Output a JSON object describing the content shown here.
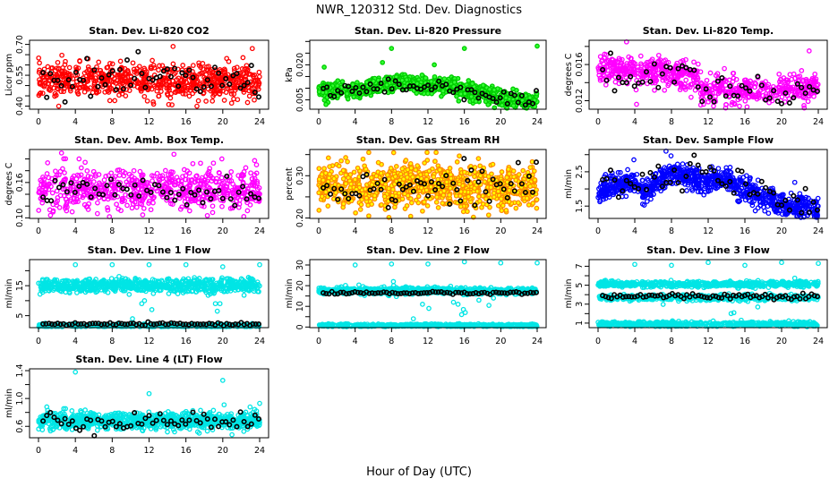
{
  "title": "NWR_120312  Std. Dev. Diagnostics",
  "xlabel": "Hour of Day (UTC)",
  "chart_data": [
    {
      "type": "scatter",
      "title": "Stan. Dev. Li-820 CO2",
      "ylabel": "Licor ppm",
      "xlim": [
        0,
        24
      ],
      "xticks": [
        0,
        4,
        8,
        12,
        16,
        20,
        24
      ],
      "xticklabels": [
        "0",
        "4",
        "8",
        "12",
        "16",
        "20",
        "24"
      ],
      "ylim": [
        0.385,
        0.72
      ],
      "yticks": [
        0.4,
        0.45,
        0.5,
        0.55,
        0.6,
        0.65,
        0.7
      ],
      "yticklabels": [
        "0.40",
        "0.55",
        "0.70"
      ],
      "ylabelvals": [
        0.4,
        0.55,
        0.7
      ],
      "color": "#ff0000",
      "fill": "none",
      "bands": [
        {
          "hours": [
            0,
            24
          ],
          "center": [
            0.525,
            0.52
          ],
          "spread": 0.04,
          "n": 700
        }
      ],
      "black": {
        "hours": [
          0,
          24
        ],
        "center": [
          0.525,
          0.52
        ],
        "spread": 0.045,
        "n": 60
      },
      "outliers": [
        [
          2.2,
          0.4
        ],
        [
          12.5,
          0.41
        ],
        [
          17.2,
          0.4
        ],
        [
          24,
          0.38
        ],
        [
          14.6,
          0.69
        ],
        [
          23.2,
          0.68
        ]
      ]
    },
    {
      "type": "scatter",
      "title": "Stan. Dev. Li-820 Pressure",
      "ylabel": "kPa",
      "xlim": [
        0,
        24
      ],
      "xticks": [
        0,
        4,
        8,
        12,
        16,
        20,
        24
      ],
      "xticklabels": [
        "0",
        "4",
        "8",
        "12",
        "16",
        "20",
        "24"
      ],
      "ylim": [
        0.001,
        0.0305
      ],
      "yticks": [
        0.005,
        0.01,
        0.015,
        0.02,
        0.025,
        0.03
      ],
      "yticklabels": [
        "0.005",
        "0.020"
      ],
      "ylabelvals": [
        0.005,
        0.02
      ],
      "color": "#00cc00",
      "fill": "#33ff33",
      "bands": [
        {
          "hours": [
            0,
            4,
            8,
            12,
            16,
            18,
            20,
            24
          ],
          "center": [
            0.009,
            0.009,
            0.012,
            0.0115,
            0.0095,
            0.008,
            0.0055,
            0.004
          ],
          "spread": 0.0018,
          "n": 900
        }
      ],
      "black": {
        "hours": [
          0,
          4,
          8,
          12,
          16,
          18,
          20,
          24
        ],
        "center": [
          0.009,
          0.009,
          0.011,
          0.011,
          0.0095,
          0.008,
          0.0055,
          0.004
        ],
        "spread": 0.0018,
        "n": 60
      },
      "outliers": [
        [
          8,
          0.027
        ],
        [
          16,
          0.027
        ],
        [
          24,
          0.028
        ],
        [
          7,
          0.021
        ],
        [
          12.7,
          0.02
        ],
        [
          0.6,
          0.019
        ]
      ]
    },
    {
      "type": "scatter",
      "title": "Stan. Dev. Li-820 Temp.",
      "ylabel": "degrees C",
      "xlim": [
        0,
        24
      ],
      "xticks": [
        0,
        4,
        8,
        12,
        16,
        20,
        24
      ],
      "xticklabels": [
        "0",
        "4",
        "8",
        "12",
        "16",
        "20",
        "24"
      ],
      "ylim": [
        0.01106,
        0.01868
      ],
      "yticks": [
        0.012,
        0.014,
        0.016,
        0.018
      ],
      "yticklabels": [
        "0.012",
        "0.016"
      ],
      "ylabelvals": [
        0.012,
        0.016
      ],
      "color": "#ff00ff",
      "fill": "none",
      "bands": [
        {
          "hours": [
            0,
            4,
            8,
            11,
            11.1,
            16,
            20,
            24
          ],
          "center": [
            0.0158,
            0.0153,
            0.015,
            0.0147,
            0.0131,
            0.013,
            0.0132,
            0.0134
          ],
          "spread": 0.0008,
          "n": 700
        }
      ],
      "black": {
        "hours": [
          0,
          4,
          8,
          11,
          11.1,
          16,
          20,
          24
        ],
        "center": [
          0.0155,
          0.014,
          0.0152,
          0.015,
          0.0132,
          0.013,
          0.013,
          0.013
        ],
        "spread": 0.0008,
        "n": 55
      },
      "outliers": [
        [
          3.1,
          0.0185
        ],
        [
          23,
          0.0175
        ],
        [
          13.9,
          0.0112
        ],
        [
          4.2,
          0.0116
        ]
      ]
    },
    {
      "type": "scatter",
      "title": "Stan. Dev. Amb. Box Temp.",
      "ylabel": "degrees C",
      "xlim": [
        0,
        24
      ],
      "xticks": [
        0,
        4,
        8,
        12,
        16,
        20,
        24
      ],
      "xticklabels": [
        "0",
        "4",
        "8",
        "12",
        "16",
        "20",
        "24"
      ],
      "ylim": [
        0.099,
        0.216
      ],
      "yticks": [
        0.1,
        0.12,
        0.14,
        0.16,
        0.18,
        0.2
      ],
      "yticklabels": [
        "0.10",
        "0.16"
      ],
      "ylabelvals": [
        0.1,
        0.16
      ],
      "color": "#ff00ff",
      "fill": "none",
      "bands": [
        {
          "hours": [
            0,
            24
          ],
          "center": [
            0.148,
            0.148
          ],
          "spread": 0.018,
          "n": 650
        }
      ],
      "black": {
        "hours": [
          0,
          24
        ],
        "center": [
          0.142,
          0.142
        ],
        "spread": 0.012,
        "n": 55
      },
      "outliers": [
        [
          2.5,
          0.21
        ],
        [
          14.7,
          0.208
        ],
        [
          7.7,
          0.102
        ],
        [
          4.4,
          0.2
        ],
        [
          19.9,
          0.2
        ]
      ]
    },
    {
      "type": "scatter",
      "title": "Stan. Dev. Gas Stream RH",
      "ylabel": "percent",
      "xlim": [
        0,
        24
      ],
      "xticks": [
        0,
        4,
        8,
        12,
        16,
        20,
        24
      ],
      "xticklabels": [
        "0",
        "4",
        "8",
        "12",
        "16",
        "20",
        "24"
      ],
      "ylim": [
        0.199,
        0.362
      ],
      "yticks": [
        0.2,
        0.25,
        0.3,
        0.35
      ],
      "yticklabels": [
        "0.20",
        "0.30"
      ],
      "ylabelvals": [
        0.2,
        0.3
      ],
      "color": "#ff8c00",
      "fill": "#ffff00",
      "bands": [
        {
          "hours": [
            0,
            24
          ],
          "center": [
            0.275,
            0.275
          ],
          "spread": 0.025,
          "n": 900
        }
      ],
      "black": {
        "hours": [
          0,
          24
        ],
        "center": [
          0.275,
          0.275
        ],
        "spread": 0.022,
        "n": 60
      },
      "outliers": [
        [
          5.5,
          0.355
        ],
        [
          11.9,
          0.355
        ],
        [
          12.9,
          0.355
        ],
        [
          5.5,
          0.205
        ],
        [
          10.1,
          0.204
        ],
        [
          17,
          0.202
        ]
      ]
    },
    {
      "type": "scatter",
      "title": "Stan. Dev. Sample Flow",
      "ylabel": "ml/min",
      "xlim": [
        0,
        24
      ],
      "xticks": [
        0,
        4,
        8,
        12,
        16,
        20,
        24
      ],
      "xticklabels": [
        "0",
        "4",
        "8",
        "12",
        "16",
        "20",
        "24"
      ],
      "ylim": [
        1.14,
        3.15
      ],
      "yticks": [
        1.5,
        2.0,
        2.5,
        3.0
      ],
      "yticklabels": [
        "1.5",
        "2.5"
      ],
      "ylabelvals": [
        1.5,
        2.5
      ],
      "color": "#0000ff",
      "fill": "none",
      "bands": [
        {
          "hours": [
            0,
            2,
            4,
            5,
            8,
            12,
            14,
            16,
            18,
            20,
            24
          ],
          "center": [
            1.85,
            2.1,
            2.2,
            1.9,
            2.5,
            2.2,
            2.3,
            2.0,
            1.75,
            1.5,
            1.4
          ],
          "spread": 0.17,
          "n": 900
        }
      ],
      "black": {
        "hours": [
          0,
          2,
          4,
          5,
          8,
          12,
          14,
          16,
          18,
          20,
          24
        ],
        "center": [
          2.1,
          2.3,
          2.2,
          2.1,
          2.5,
          2.6,
          2.4,
          2.1,
          1.85,
          1.7,
          1.6
        ],
        "spread": 0.25,
        "n": 55
      },
      "outliers": [
        [
          7.4,
          3.1
        ],
        [
          3.9,
          2.85
        ],
        [
          23.9,
          1.2
        ]
      ]
    },
    {
      "type": "scatter",
      "title": "Stan. Dev. Line 1 Flow",
      "ylabel": "ml/min",
      "xlim": [
        0,
        24
      ],
      "xticks": [
        0,
        4,
        8,
        12,
        16,
        20,
        24
      ],
      "xticklabels": [
        "0",
        "4",
        "8",
        "12",
        "16",
        "20",
        "24"
      ],
      "ylim": [
        1.0,
        23.7
      ],
      "yticks": [
        5,
        10,
        15,
        20
      ],
      "yticklabels": [
        "5",
        "15"
      ],
      "ylabelvals": [
        5,
        15
      ],
      "color": "#00e5e5",
      "fill": "none",
      "bands": [
        {
          "hours": [
            0,
            24
          ],
          "center": [
            15,
            15
          ],
          "spread": 1.1,
          "n": 800
        },
        {
          "hours": [
            0,
            24
          ],
          "center": [
            1.6,
            1.6
          ],
          "spread": 0.3,
          "n": 500
        }
      ],
      "black": {
        "hours": [
          0,
          24
        ],
        "center": [
          2.2,
          2.2
        ],
        "spread": 0.2,
        "n": 75
      },
      "outliers": [
        [
          4,
          22
        ],
        [
          8,
          22
        ],
        [
          12,
          22
        ],
        [
          16,
          22
        ],
        [
          20,
          21.3
        ],
        [
          24,
          22
        ],
        [
          11.2,
          9
        ],
        [
          11.5,
          10
        ],
        [
          12.3,
          7
        ],
        [
          19.2,
          9
        ],
        [
          19.4,
          6.5
        ],
        [
          19.7,
          9
        ],
        [
          10.2,
          4
        ]
      ]
    },
    {
      "type": "scatter",
      "title": "Stan. Dev. Line 2 Flow",
      "ylabel": "ml/min",
      "xlim": [
        0,
        24
      ],
      "xticks": [
        0,
        4,
        8,
        12,
        16,
        20,
        24
      ],
      "xticklabels": [
        "0",
        "4",
        "8",
        "12",
        "16",
        "20",
        "24"
      ],
      "ylim": [
        -0.3,
        32.6
      ],
      "yticks": [
        0,
        5,
        10,
        15,
        20,
        25,
        30
      ],
      "yticklabels": [
        "0",
        "10",
        "20",
        "30"
      ],
      "ylabelvals": [
        0,
        10,
        20,
        30
      ],
      "color": "#00e5e5",
      "fill": "none",
      "bands": [
        {
          "hours": [
            0,
            24
          ],
          "center": [
            17.5,
            17.5
          ],
          "spread": 0.8,
          "n": 800
        },
        {
          "hours": [
            0,
            24
          ],
          "center": [
            0.8,
            0.8
          ],
          "spread": 0.3,
          "n": 500
        }
      ],
      "black": {
        "hours": [
          0,
          24
        ],
        "center": [
          16.5,
          16.5
        ],
        "spread": 0.3,
        "n": 75
      },
      "outliers": [
        [
          4,
          30
        ],
        [
          8,
          30.5
        ],
        [
          12,
          30.5
        ],
        [
          16,
          31.5
        ],
        [
          20,
          31
        ],
        [
          24,
          31
        ],
        [
          8.2,
          22
        ],
        [
          10.4,
          4
        ],
        [
          11.4,
          11
        ],
        [
          12.1,
          9
        ],
        [
          14.8,
          12
        ],
        [
          15.3,
          11
        ],
        [
          16.1,
          7
        ],
        [
          15.9,
          8.5
        ],
        [
          18.7,
          10.5
        ],
        [
          19.2,
          14
        ],
        [
          17.6,
          13
        ],
        [
          15.7,
          6
        ]
      ]
    },
    {
      "type": "scatter",
      "title": "Stan. Dev. Line 3 Flow",
      "ylabel": "ml/min",
      "xlim": [
        0,
        24
      ],
      "xticks": [
        0,
        4,
        8,
        12,
        16,
        20,
        24
      ],
      "xticklabels": [
        "0",
        "4",
        "8",
        "12",
        "16",
        "20",
        "24"
      ],
      "ylim": [
        0.52,
        7.7
      ],
      "yticks": [
        1,
        2,
        3,
        4,
        5,
        6,
        7
      ],
      "yticklabels": [
        "1",
        "3",
        "5",
        "7"
      ],
      "ylabelvals": [
        1,
        3,
        5,
        7
      ],
      "color": "#00e5e5",
      "fill": "none",
      "bands": [
        {
          "hours": [
            0,
            24
          ],
          "center": [
            5.1,
            5.1
          ],
          "spread": 0.15,
          "n": 600
        },
        {
          "hours": [
            0,
            24
          ],
          "center": [
            3.7,
            3.7
          ],
          "spread": 0.15,
          "n": 500
        },
        {
          "hours": [
            0,
            24
          ],
          "center": [
            0.9,
            0.9
          ],
          "spread": 0.12,
          "n": 500
        }
      ],
      "black": {
        "hours": [
          0,
          24
        ],
        "center": [
          3.85,
          3.85
        ],
        "spread": 0.15,
        "n": 75
      },
      "outliers": [
        [
          4,
          7.2
        ],
        [
          8,
          7.1
        ],
        [
          12,
          7.4
        ],
        [
          16,
          7.1
        ],
        [
          20,
          7.4
        ],
        [
          24,
          7.3
        ],
        [
          14.5,
          2
        ],
        [
          14.8,
          2.1
        ],
        [
          15.6,
          1.3
        ],
        [
          17.4,
          2.7
        ]
      ]
    },
    {
      "type": "scatter",
      "title": "Stan. Dev. Line 4 (LT) Flow",
      "ylabel": "ml/min",
      "xlim": [
        0,
        24
      ],
      "xticks": [
        0,
        4,
        8,
        12,
        16,
        20,
        24
      ],
      "xticklabels": [
        "0",
        "4",
        "8",
        "12",
        "16",
        "20",
        "24"
      ],
      "ylim": [
        0.436,
        1.426
      ],
      "yticks": [
        0.6,
        0.8,
        1.0,
        1.2,
        1.4
      ],
      "yticklabels": [
        "0.6",
        "1.0",
        "1.4"
      ],
      "ylabelvals": [
        0.6,
        1.0,
        1.4
      ],
      "color": "#00e5e5",
      "fill": "none",
      "bands": [
        {
          "hours": [
            0,
            24
          ],
          "center": [
            0.68,
            0.68
          ],
          "spread": 0.06,
          "n": 900
        }
      ],
      "black": {
        "hours": [
          0,
          24
        ],
        "center": [
          0.68,
          0.68
        ],
        "spread": 0.07,
        "n": 60
      },
      "outliers": [
        [
          4,
          1.38
        ],
        [
          12,
          1.07
        ],
        [
          20,
          1.26
        ],
        [
          24,
          0.93
        ],
        [
          0.9,
          0.88
        ],
        [
          21,
          0.48
        ]
      ]
    }
  ]
}
